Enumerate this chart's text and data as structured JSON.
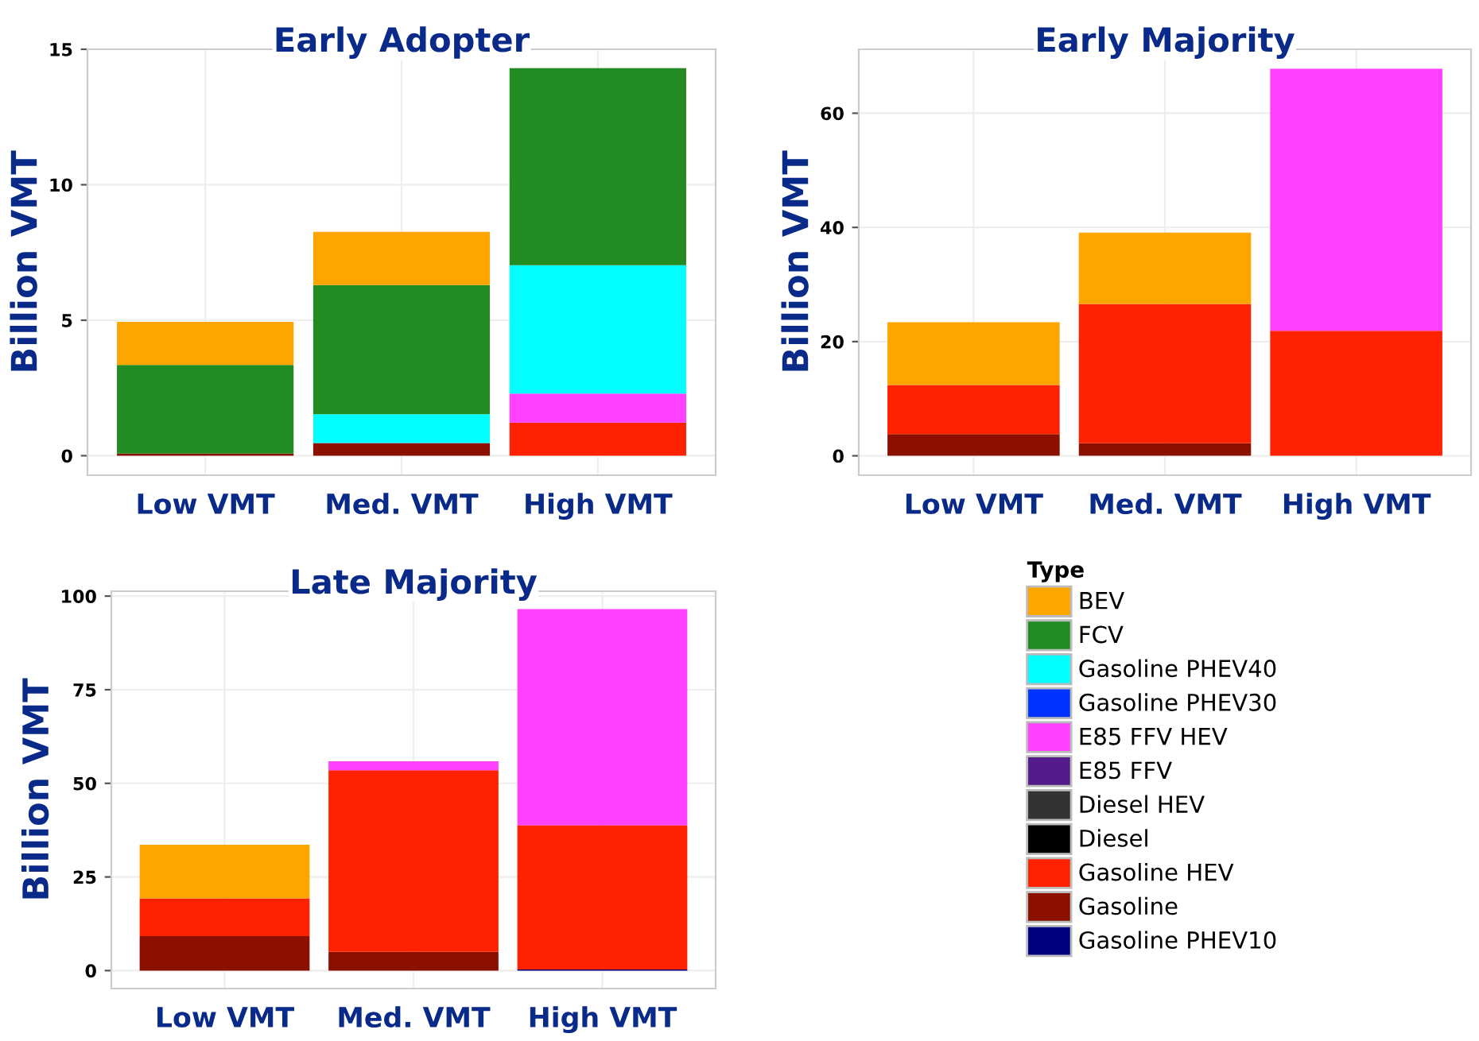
{
  "chart_data": [
    {
      "type": "bar",
      "stacked": true,
      "title": "Early Adopter",
      "ylabel": "Billion VMT",
      "categories": [
        "Low VMT",
        "Med. VMT",
        "High VMT"
      ],
      "ylim": [
        -0.72,
        15.0
      ],
      "yticks": [
        0,
        5,
        10,
        15
      ],
      "grid": true,
      "legend": "bottom right",
      "legend_title": "Type",
      "series": [
        {
          "name": "Gasoline PHEV10",
          "color": "#000080",
          "values": [
            0,
            0,
            0
          ]
        },
        {
          "name": "Gasoline",
          "color": "#8b1000",
          "values": [
            0.08,
            0.47,
            0
          ]
        },
        {
          "name": "Gasoline HEV",
          "color": "#ff2200",
          "values": [
            0,
            0,
            1.22
          ]
        },
        {
          "name": "Diesel",
          "color": "#000000",
          "values": [
            0,
            0,
            0
          ]
        },
        {
          "name": "Diesel HEV",
          "color": "#333333",
          "values": [
            0,
            0,
            0
          ]
        },
        {
          "name": "E85 FFV",
          "color": "#551a8b",
          "values": [
            0,
            0,
            0
          ]
        },
        {
          "name": "E85 FFV HEV",
          "color": "#ff40ff",
          "values": [
            0,
            0,
            1.07
          ]
        },
        {
          "name": "Gasoline PHEV30",
          "color": "#0033ff",
          "values": [
            0,
            0,
            0
          ]
        },
        {
          "name": "Gasoline PHEV40",
          "color": "#00ffff",
          "values": [
            0,
            1.06,
            4.74
          ]
        },
        {
          "name": "FCV",
          "color": "#228b22",
          "values": [
            3.27,
            4.77,
            7.27
          ]
        },
        {
          "name": "BEV",
          "color": "#ffa500",
          "values": [
            1.59,
            1.96,
            0
          ]
        }
      ]
    },
    {
      "type": "bar",
      "stacked": true,
      "title": "Early Majority",
      "ylabel": "Billion VMT",
      "categories": [
        "Low VMT",
        "Med. VMT",
        "High VMT"
      ],
      "ylim": [
        -3.4,
        71.2
      ],
      "yticks": [
        0,
        20,
        40,
        60
      ],
      "grid": true,
      "series": [
        {
          "color": "#000080",
          "values": [
            0,
            0,
            0
          ]
        },
        {
          "color": "#8b1000",
          "values": [
            3.8,
            2.2,
            0
          ]
        },
        {
          "color": "#ff2200",
          "values": [
            8.6,
            24.4,
            21.9
          ]
        },
        {
          "color": "#000000",
          "values": [
            0,
            0,
            0
          ]
        },
        {
          "color": "#333333",
          "values": [
            0,
            0,
            0
          ]
        },
        {
          "color": "#551a8b",
          "values": [
            0,
            0,
            0
          ]
        },
        {
          "color": "#ff40ff",
          "values": [
            0,
            0,
            45.9
          ]
        },
        {
          "color": "#0033ff",
          "values": [
            0,
            0,
            0
          ]
        },
        {
          "color": "#00ffff",
          "values": [
            0,
            0,
            0
          ]
        },
        {
          "color": "#228b22",
          "values": [
            0,
            0,
            0
          ]
        },
        {
          "color": "#ffa500",
          "values": [
            11.0,
            12.5,
            0
          ]
        }
      ]
    },
    {
      "type": "bar",
      "stacked": true,
      "title": "Late Majority",
      "ylabel": "Billion VMT",
      "categories": [
        "Low VMT",
        "Med. VMT",
        "High VMT"
      ],
      "ylim": [
        -4.8,
        101.3
      ],
      "yticks": [
        0,
        25,
        50,
        75,
        100
      ],
      "grid": true,
      "series": [
        {
          "color": "#000080",
          "values": [
            0,
            0,
            0.3
          ]
        },
        {
          "color": "#8b1000",
          "values": [
            9.2,
            5.0,
            0
          ]
        },
        {
          "color": "#ff2200",
          "values": [
            10.1,
            48.5,
            38.5
          ]
        },
        {
          "color": "#000000",
          "values": [
            0,
            0,
            0
          ]
        },
        {
          "color": "#333333",
          "values": [
            0,
            0,
            0
          ]
        },
        {
          "color": "#551a8b",
          "values": [
            0,
            0,
            0
          ]
        },
        {
          "color": "#ff40ff",
          "values": [
            0,
            2.4,
            57.7
          ]
        },
        {
          "color": "#0033ff",
          "values": [
            0,
            0,
            0
          ]
        },
        {
          "color": "#00ffff",
          "values": [
            0,
            0,
            0
          ]
        },
        {
          "color": "#228b22",
          "values": [
            0,
            0,
            0
          ]
        },
        {
          "color": "#ffa500",
          "values": [
            14.3,
            0,
            0
          ]
        }
      ]
    }
  ]
}
